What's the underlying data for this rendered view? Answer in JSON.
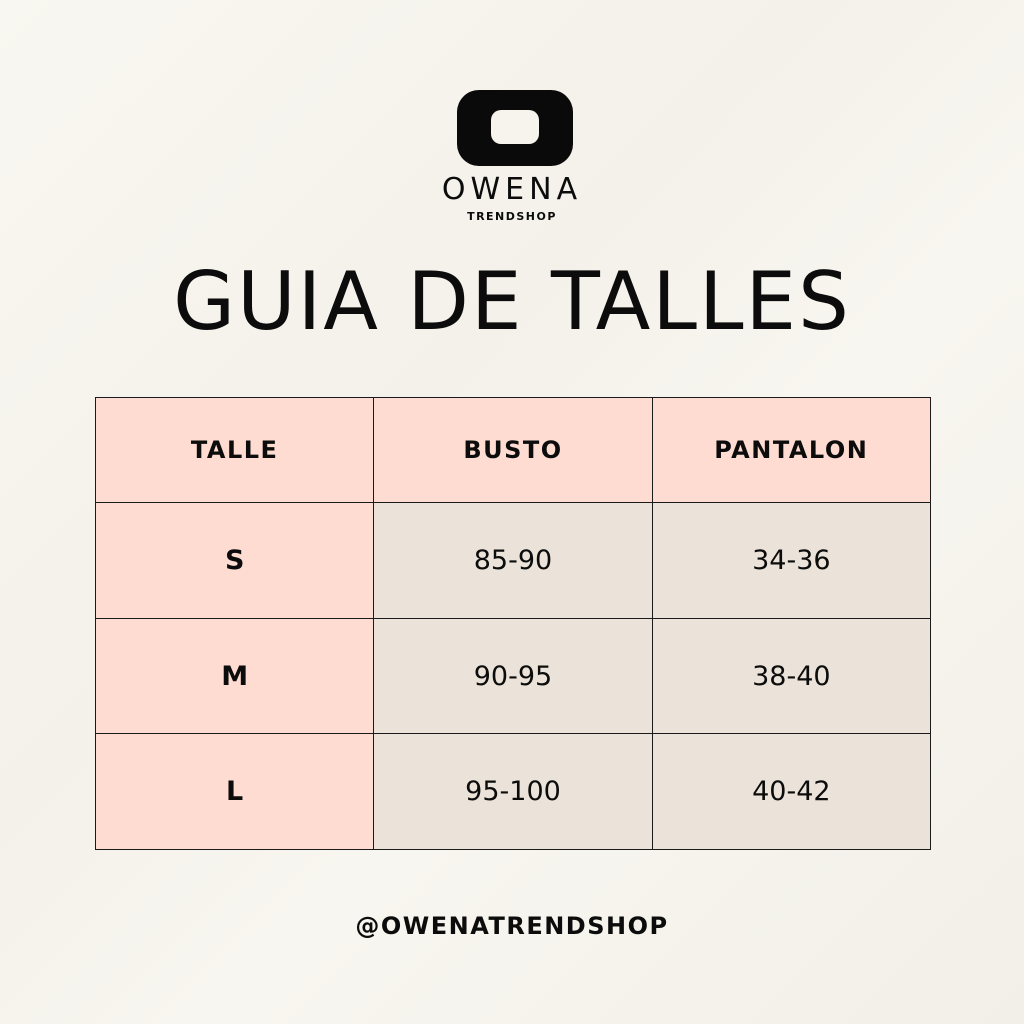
{
  "brand": {
    "name": "OWENA",
    "sub": "TRENDSHOP"
  },
  "title": "GUIA DE TALLES",
  "table": {
    "headers": [
      "TALLE",
      "BUSTO",
      "PANTALON"
    ],
    "rows": [
      [
        "S",
        "85-90",
        "34-36"
      ],
      [
        "M",
        "90-95",
        "38-40"
      ],
      [
        "L",
        "95-100",
        "40-42"
      ]
    ]
  },
  "handle": "@OWENATRENDSHOP",
  "colors": {
    "header": "#fedcd1",
    "cell": "#ebe3d9",
    "background": "#f7f4ee"
  }
}
